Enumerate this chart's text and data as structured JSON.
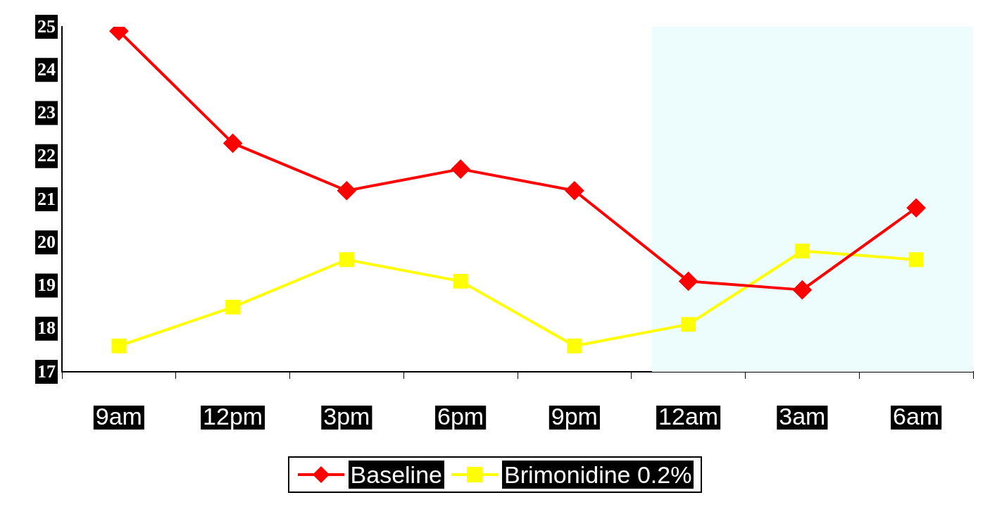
{
  "chart_data": {
    "type": "line",
    "categories": [
      "9am",
      "12pm",
      "3pm",
      "6pm",
      "9pm",
      "12am",
      "3am",
      "6am"
    ],
    "series": [
      {
        "name": "Baseline",
        "color": "#ff0000",
        "marker": "diamond",
        "values": [
          24.9,
          22.3,
          21.2,
          21.7,
          21.2,
          19.1,
          18.9,
          20.8
        ]
      },
      {
        "name": "Brimonidine 0.2%",
        "color": "#ffff00",
        "marker": "square",
        "values": [
          17.6,
          18.5,
          19.6,
          19.1,
          17.6,
          18.1,
          19.8,
          19.6
        ]
      }
    ],
    "ylim": [
      17,
      25
    ],
    "yticks": [
      17,
      18,
      19,
      20,
      21,
      22,
      23,
      24,
      25
    ],
    "grid": false,
    "legend": "bottom",
    "bands": [
      {
        "axis": "x",
        "from": "12am",
        "to": "6am",
        "color": "#edfdfd"
      }
    ]
  }
}
